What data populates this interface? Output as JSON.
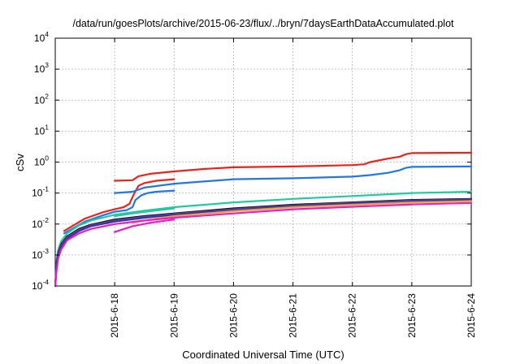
{
  "chart_data": {
    "type": "line",
    "title": "/data/run/goesPlots/archive/2015-06-23/flux/../bryn/7daysEarthDataAccumulated.plot",
    "xlabel": "Coordinated Universal Time (UTC)",
    "ylabel": "cSv",
    "yscale": "log",
    "ylim": [
      0.0001,
      10000
    ],
    "xlim": [
      0,
      7
    ],
    "grid": true,
    "y_ticks": [
      {
        "base": "10",
        "exp": "-4",
        "value": 0.0001
      },
      {
        "base": "10",
        "exp": "-3",
        "value": 0.001
      },
      {
        "base": "10",
        "exp": "-2",
        "value": 0.01
      },
      {
        "base": "10",
        "exp": "-1",
        "value": 0.1
      },
      {
        "base": "10",
        "exp": "0",
        "value": 1
      },
      {
        "base": "10",
        "exp": "1",
        "value": 10
      },
      {
        "base": "10",
        "exp": "2",
        "value": 100
      },
      {
        "base": "10",
        "exp": "3",
        "value": 1000
      },
      {
        "base": "10",
        "exp": "4",
        "value": 10000
      }
    ],
    "x_ticks": [
      {
        "label": "2015-6-18",
        "value": 1
      },
      {
        "label": "2015-6-19",
        "value": 2
      },
      {
        "label": "2015-6-20",
        "value": 3
      },
      {
        "label": "2015-6-21",
        "value": 4
      },
      {
        "label": "2015-6-22",
        "value": 5
      },
      {
        "label": "2015-6-23",
        "value": 6
      },
      {
        "label": "2015-6-24",
        "value": 7
      }
    ],
    "series": [
      {
        "color": "#e8241c",
        "x": [
          1.0,
          1.3,
          1.4,
          1.6,
          2.0,
          2.5,
          3.0,
          4.0,
          5.0,
          5.2,
          5.3,
          5.6,
          5.8,
          5.9,
          6.0,
          7.0
        ],
        "y": [
          0.25,
          0.26,
          0.35,
          0.42,
          0.5,
          0.6,
          0.68,
          0.72,
          0.8,
          0.85,
          1.0,
          1.3,
          1.5,
          1.8,
          1.95,
          2.0
        ]
      },
      {
        "color": "#e8241c",
        "x": [
          0.15,
          0.5,
          0.8,
          1.0,
          1.15,
          1.25,
          1.32,
          1.4,
          1.5,
          1.7,
          2.0
        ],
        "y": [
          0.006,
          0.015,
          0.024,
          0.03,
          0.035,
          0.045,
          0.09,
          0.17,
          0.21,
          0.25,
          0.28
        ]
      },
      {
        "color": "#2277e0",
        "x": [
          1.0,
          1.3,
          1.5,
          2.0,
          3.0,
          4.0,
          5.0,
          5.3,
          5.6,
          5.8,
          5.9,
          6.0,
          7.0
        ],
        "y": [
          0.1,
          0.11,
          0.15,
          0.2,
          0.28,
          0.3,
          0.34,
          0.38,
          0.45,
          0.55,
          0.65,
          0.7,
          0.72
        ]
      },
      {
        "color": "#2277e0",
        "x": [
          0.15,
          0.5,
          0.8,
          1.0,
          1.2,
          1.3,
          1.35,
          1.45,
          1.55,
          1.7,
          2.0
        ],
        "y": [
          0.005,
          0.012,
          0.019,
          0.025,
          0.028,
          0.035,
          0.06,
          0.085,
          0.1,
          0.11,
          0.12
        ]
      },
      {
        "color": "#22c9a0",
        "x": [
          0.0,
          0.02,
          0.05,
          0.1,
          0.2,
          0.4,
          0.6,
          1.0,
          1.5,
          2.0,
          3.0,
          4.0,
          5.0,
          6.0,
          7.0
        ],
        "y": [
          0.0001,
          0.0006,
          0.0015,
          0.0028,
          0.005,
          0.009,
          0.013,
          0.02,
          0.027,
          0.035,
          0.05,
          0.065,
          0.08,
          0.1,
          0.11
        ]
      },
      {
        "color": "#111111",
        "x": [
          0.0,
          0.02,
          0.05,
          0.1,
          0.2,
          0.4,
          0.6,
          1.0,
          1.5,
          2.0,
          3.0,
          4.0,
          5.0,
          6.0,
          7.0
        ],
        "y": [
          0.0001,
          0.0005,
          0.0012,
          0.0022,
          0.004,
          0.007,
          0.0095,
          0.014,
          0.018,
          0.022,
          0.032,
          0.042,
          0.05,
          0.06,
          0.065
        ]
      },
      {
        "color": "#7a3f9e",
        "x": [
          0.0,
          0.02,
          0.05,
          0.1,
          0.2,
          0.4,
          0.6,
          1.0,
          1.5,
          2.0,
          3.0,
          4.0,
          5.0,
          6.0,
          7.0
        ],
        "y": [
          0.0001,
          0.00045,
          0.0011,
          0.002,
          0.0037,
          0.0065,
          0.009,
          0.013,
          0.017,
          0.021,
          0.03,
          0.04,
          0.048,
          0.057,
          0.062
        ]
      },
      {
        "color": "#2b36a8",
        "x": [
          0.0,
          0.02,
          0.05,
          0.1,
          0.2,
          0.4,
          0.6,
          1.0,
          1.5,
          2.0,
          3.0,
          4.0,
          5.0,
          6.0,
          7.0
        ],
        "y": [
          0.0001,
          0.0004,
          0.001,
          0.0018,
          0.0034,
          0.006,
          0.0085,
          0.012,
          0.016,
          0.02,
          0.028,
          0.038,
          0.046,
          0.054,
          0.06
        ]
      },
      {
        "color": "#f0a030",
        "x": [
          1.3,
          1.6,
          2.0,
          3.0,
          4.0,
          5.0,
          6.0,
          7.0
        ],
        "y": [
          0.011,
          0.014,
          0.018,
          0.026,
          0.035,
          0.042,
          0.05,
          0.055
        ]
      },
      {
        "color": "#e51ec8",
        "x": [
          0.0,
          0.02,
          0.05,
          0.1,
          0.2,
          0.4,
          0.6,
          1.0,
          1.5,
          2.0,
          3.0,
          4.0,
          5.0,
          6.0,
          7.0
        ],
        "y": [
          0.0001,
          0.0003,
          0.0008,
          0.0015,
          0.003,
          0.005,
          0.007,
          0.01,
          0.013,
          0.016,
          0.022,
          0.03,
          0.036,
          0.043,
          0.048
        ]
      },
      {
        "color": "#e51ec8",
        "x": [
          1.0,
          1.3,
          1.6,
          2.0
        ],
        "y": [
          0.0055,
          0.0085,
          0.011,
          0.014
        ]
      },
      {
        "color": "#22c9a0",
        "x": [
          1.0,
          1.3,
          1.6,
          2.0
        ],
        "y": [
          0.018,
          0.022,
          0.026,
          0.032
        ]
      }
    ]
  }
}
